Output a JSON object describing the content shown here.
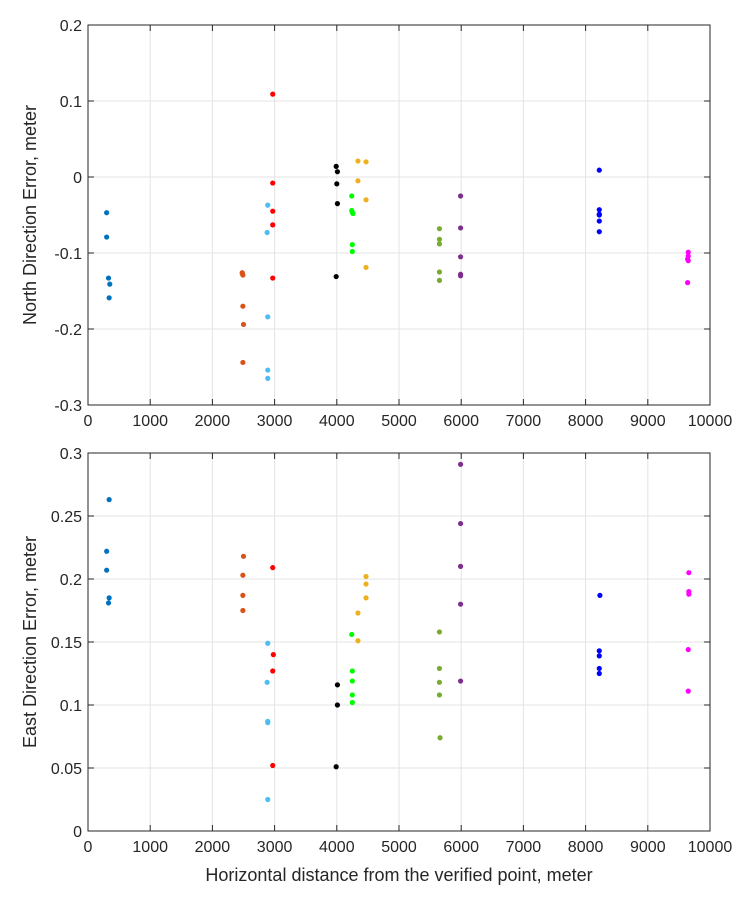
{
  "xlabel": "Horizontal distance from the verified point, meter",
  "chart_data": [
    {
      "type": "scatter",
      "title": "",
      "xlabel": "",
      "ylabel": "North Direction Error, meter",
      "xlim": [
        0,
        10000
      ],
      "ylim": [
        -0.3,
        0.2
      ],
      "xticks": [
        0,
        1000,
        2000,
        3000,
        4000,
        5000,
        6000,
        7000,
        8000,
        9000,
        10000
      ],
      "xtick_labels": [
        "0",
        "1000",
        "2000",
        "3000",
        "4000",
        "5000",
        "6000",
        "7000",
        "8000",
        "9000",
        "10000"
      ],
      "yticks": [
        -0.3,
        -0.2,
        -0.1,
        0,
        0.1,
        0.2
      ],
      "ytick_labels": [
        "-0.3",
        "-0.2",
        "-0.1",
        "0",
        "0.1",
        "0.2"
      ],
      "grid": true,
      "series": [
        {
          "color": "#0072bd",
          "x": [
            300,
            300,
            330,
            350,
            340
          ],
          "y": [
            -0.047,
            -0.079,
            -0.133,
            -0.141,
            -0.159
          ]
        },
        {
          "color": "#d95319",
          "x": [
            2480,
            2490,
            2490,
            2500,
            2490,
            2480
          ],
          "y": [
            -0.126,
            -0.129,
            -0.17,
            -0.194,
            -0.244,
            -0.127
          ]
        },
        {
          "color": "#4dbeee",
          "x": [
            2890,
            2880,
            2890,
            2890,
            2890
          ],
          "y": [
            -0.037,
            -0.073,
            -0.184,
            -0.254,
            -0.265
          ]
        },
        {
          "color": "#ff0000",
          "x": [
            2970,
            2970,
            2970,
            2970,
            2970
          ],
          "y": [
            0.109,
            -0.008,
            -0.045,
            -0.063,
            -0.133
          ]
        },
        {
          "color": "#000000",
          "x": [
            3990,
            4010,
            4000,
            4010,
            3990
          ],
          "y": [
            0.014,
            0.007,
            -0.009,
            -0.035,
            -0.131
          ]
        },
        {
          "color": "#00ff00",
          "x": [
            4240,
            4240,
            4250,
            4250,
            4250,
            4260
          ],
          "y": [
            -0.025,
            -0.044,
            -0.047,
            -0.089,
            -0.098,
            -0.048
          ]
        },
        {
          "color": "#edb120",
          "x": [
            4340,
            4470,
            4340,
            4470,
            4470
          ],
          "y": [
            0.021,
            0.02,
            -0.005,
            -0.03,
            -0.119
          ]
        },
        {
          "color": "#77ac30",
          "x": [
            5650,
            5650,
            5650,
            5650,
            5650
          ],
          "y": [
            -0.068,
            -0.082,
            -0.088,
            -0.125,
            -0.136
          ]
        },
        {
          "color": "#7e2f8e",
          "x": [
            5990,
            5990,
            5990,
            5990,
            5990
          ],
          "y": [
            -0.025,
            -0.067,
            -0.105,
            -0.128,
            -0.13
          ]
        },
        {
          "color": "#0000ff",
          "x": [
            8220,
            8220,
            8220,
            8220,
            8220,
            8220
          ],
          "y": [
            0.009,
            -0.043,
            -0.049,
            -0.058,
            -0.072,
            -0.05
          ]
        },
        {
          "color": "#ff00ff",
          "x": [
            9650,
            9650,
            9640,
            9650,
            9640
          ],
          "y": [
            -0.099,
            -0.104,
            -0.108,
            -0.11,
            -0.139
          ]
        }
      ]
    },
    {
      "type": "scatter",
      "title": "",
      "xlabel": "Horizontal distance from the verified point, meter",
      "ylabel": "East Direction Error, meter",
      "xlim": [
        0,
        10000
      ],
      "ylim": [
        0,
        0.3
      ],
      "xticks": [
        0,
        1000,
        2000,
        3000,
        4000,
        5000,
        6000,
        7000,
        8000,
        9000,
        10000
      ],
      "xtick_labels": [
        "0",
        "1000",
        "2000",
        "3000",
        "4000",
        "5000",
        "6000",
        "7000",
        "8000",
        "9000",
        "10000"
      ],
      "yticks": [
        0,
        0.05,
        0.1,
        0.15,
        0.2,
        0.25,
        0.3
      ],
      "ytick_labels": [
        "0",
        "0.05",
        "0.1",
        "0.15",
        "0.2",
        "0.25",
        "0.3"
      ],
      "grid": true,
      "series": [
        {
          "color": "#0072bd",
          "x": [
            340,
            300,
            300,
            340,
            330
          ],
          "y": [
            0.263,
            0.222,
            0.207,
            0.185,
            0.181
          ]
        },
        {
          "color": "#d95319",
          "x": [
            2500,
            2490,
            2490,
            2490
          ],
          "y": [
            0.218,
            0.203,
            0.187,
            0.175
          ]
        },
        {
          "color": "#4dbeee",
          "x": [
            2890,
            2880,
            2890,
            2890,
            2890
          ],
          "y": [
            0.149,
            0.118,
            0.087,
            0.086,
            0.025
          ]
        },
        {
          "color": "#ff0000",
          "x": [
            2970,
            2980,
            2970,
            2970
          ],
          "y": [
            0.209,
            0.14,
            0.127,
            0.052
          ]
        },
        {
          "color": "#000000",
          "x": [
            4010,
            4010,
            3990
          ],
          "y": [
            0.116,
            0.1,
            0.051
          ]
        },
        {
          "color": "#00ff00",
          "x": [
            4240,
            4250,
            4250,
            4250,
            4250
          ],
          "y": [
            0.156,
            0.127,
            0.119,
            0.108,
            0.102
          ]
        },
        {
          "color": "#edb120",
          "x": [
            4470,
            4470,
            4470,
            4340,
            4340
          ],
          "y": [
            0.202,
            0.196,
            0.185,
            0.173,
            0.151
          ]
        },
        {
          "color": "#77ac30",
          "x": [
            5650,
            5650,
            5650,
            5650,
            5660
          ],
          "y": [
            0.158,
            0.129,
            0.118,
            0.108,
            0.074
          ]
        },
        {
          "color": "#7e2f8e",
          "x": [
            5990,
            5990,
            5990,
            5990,
            5990
          ],
          "y": [
            0.291,
            0.244,
            0.21,
            0.18,
            0.119
          ]
        },
        {
          "color": "#0000ff",
          "x": [
            8230,
            8220,
            8220,
            8220,
            8220
          ],
          "y": [
            0.187,
            0.143,
            0.139,
            0.129,
            0.125
          ]
        },
        {
          "color": "#ff00ff",
          "x": [
            9660,
            9660,
            9660,
            9650,
            9650
          ],
          "y": [
            0.205,
            0.19,
            0.188,
            0.144,
            0.111
          ]
        }
      ]
    }
  ]
}
